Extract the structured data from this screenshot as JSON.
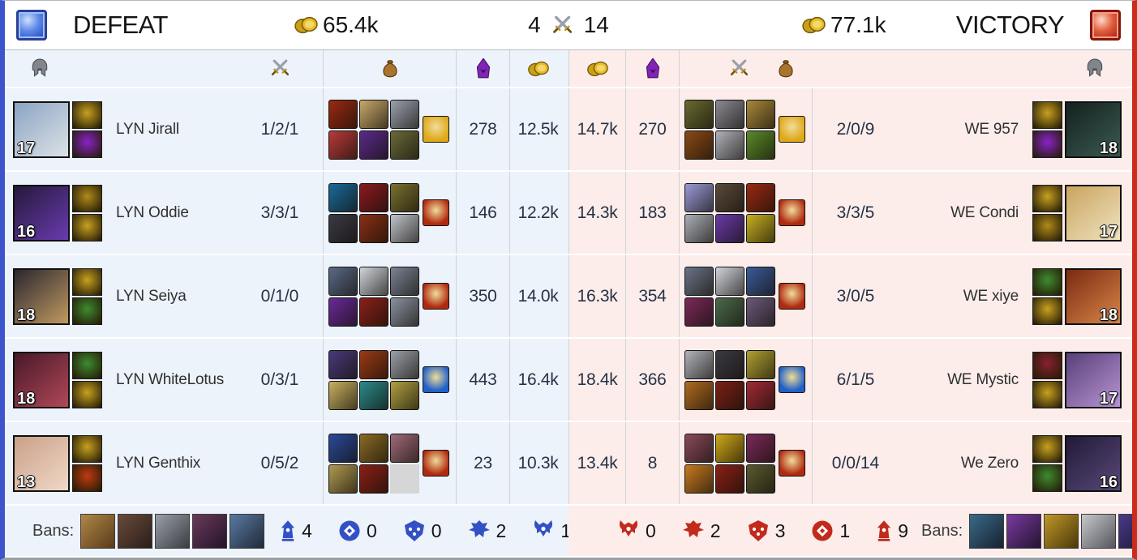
{
  "match": {
    "left": {
      "result": "DEFEAT",
      "team_gold": "65.4k",
      "kills": "4",
      "team_color": "#3c55cc",
      "row_bg": "#edf3fa"
    },
    "right": {
      "result": "VICTORY",
      "team_gold": "77.1k",
      "kills": "14",
      "team_color": "#cc2a1a",
      "row_bg": "#fcedeb"
    }
  },
  "columns": {
    "left": [
      "champion",
      "kda",
      "items",
      "minions",
      "gold"
    ],
    "right": [
      "gold",
      "minions",
      "items",
      "kda",
      "champion"
    ]
  },
  "players": {
    "left": [
      {
        "name": "LYN Jirall",
        "kda": "1/2/1",
        "cs": "278",
        "gold": "12.5k",
        "level": "17",
        "champion_colors": [
          "#8aa4c4",
          "#dde2e6"
        ],
        "spell_colors": [
          "#c8a020",
          "#8a22c8"
        ],
        "item_colors": [
          "#9a2a12",
          "#c8a86a",
          "#9aa2ae",
          "#b83a3a",
          "#5a2a8a",
          "#6a6a3a"
        ],
        "trinket_color": "#e0a818"
      },
      {
        "name": "LYN Oddie",
        "kda": "3/3/1",
        "cs": "146",
        "gold": "12.2k",
        "level": "16",
        "champion_colors": [
          "#241a3a",
          "#6a3ab0"
        ],
        "spell_colors": [
          "#b08a1a",
          "#c8a020"
        ],
        "item_colors": [
          "#1a6a9a",
          "#8a1a20",
          "#7a7030",
          "#3a3a46",
          "#8a3015",
          "#c0c4cc"
        ],
        "trinket_color": "#b02a10"
      },
      {
        "name": "LYN Seiya",
        "kda": "0/1/0",
        "cs": "350",
        "gold": "14.0k",
        "level": "18",
        "champion_colors": [
          "#2a2630",
          "#c09a60"
        ],
        "spell_colors": [
          "#c8a020",
          "#3f8a30"
        ],
        "item_colors": [
          "#5a6a88",
          "#d0d4dc",
          "#7a8494",
          "#6a2a9a",
          "#8a2018",
          "#8a92a0"
        ],
        "trinket_color": "#b02a10"
      },
      {
        "name": "LYN WhiteLotus",
        "kda": "0/3/1",
        "cs": "443",
        "gold": "16.4k",
        "level": "18",
        "champion_colors": [
          "#481828",
          "#b04858"
        ],
        "spell_colors": [
          "#3f8a30",
          "#c8a020"
        ],
        "item_colors": [
          "#4a3a7a",
          "#9a3a15",
          "#9aa0a8",
          "#c8b060",
          "#2a8a8a",
          "#b0a040"
        ],
        "trinket_color": "#2060c8"
      },
      {
        "name": "LYN Genthix",
        "kda": "0/5/2",
        "cs": "23",
        "gold": "10.3k",
        "level": "13",
        "champion_colors": [
          "#caa088",
          "#f0d8c8"
        ],
        "spell_colors": [
          "#c8a020",
          "#c03a10"
        ],
        "item_colors": [
          "#2a4a9a",
          "#8a6a25",
          "#a06a7a",
          "#b09a50",
          "#8a2015",
          "empty"
        ],
        "trinket_color": "#b02a10"
      }
    ],
    "right": [
      {
        "name": "WE 957",
        "kda": "2/0/9",
        "cs": "270",
        "gold": "14.7k",
        "level": "18",
        "champion_colors": [
          "#15211f",
          "#3a5a52"
        ],
        "spell_colors": [
          "#c8a020",
          "#8a22c8"
        ],
        "item_colors": [
          "#6a6a30",
          "#8a8a92",
          "#a8883a",
          "#8a4a15",
          "#b0b2ba",
          "#5a8a28"
        ],
        "trinket_color": "#e0a818"
      },
      {
        "name": "WE Condi",
        "kda": "3/3/5",
        "cs": "183",
        "gold": "14.3k",
        "level": "17",
        "champion_colors": [
          "#caa460",
          "#efe3c0"
        ],
        "spell_colors": [
          "#c8a020",
          "#b08a1a"
        ],
        "item_colors": [
          "#9a9ad8",
          "#5a4a3a",
          "#9a2a12",
          "#aab0b8",
          "#6a3aa8",
          "#c8b020"
        ],
        "trinket_color": "#b02a10"
      },
      {
        "name": "WE xiye",
        "kda": "3/0/5",
        "cs": "354",
        "gold": "16.3k",
        "level": "18",
        "champion_colors": [
          "#7a2a10",
          "#d8864a"
        ],
        "spell_colors": [
          "#3f8a30",
          "#c8a020"
        ],
        "item_colors": [
          "#6a7488",
          "#d0d4dc",
          "#3a5a9a",
          "#7a2a5a",
          "#4a6a4a",
          "#6a5a7a"
        ],
        "trinket_color": "#b02a10"
      },
      {
        "name": "WE Mystic",
        "kda": "6/1/5",
        "cs": "366",
        "gold": "18.4k",
        "level": "17",
        "champion_colors": [
          "#584078",
          "#b894d4"
        ],
        "spell_colors": [
          "#8a2030",
          "#c8a020"
        ],
        "item_colors": [
          "#b0b4bc",
          "#3a3a42",
          "#b0a030",
          "#b06a20",
          "#7a2015",
          "#a02a35"
        ],
        "trinket_color": "#2060c8"
      },
      {
        "name": "We Zero",
        "kda": "0/0/14",
        "cs": "8",
        "gold": "13.4k",
        "level": "16",
        "champion_colors": [
          "#221a38",
          "#584878"
        ],
        "spell_colors": [
          "#c8a020",
          "#3f8a30"
        ],
        "item_colors": [
          "#8a4a5a",
          "#d0a818",
          "#7a2a5a",
          "#c87a20",
          "#8a2015",
          "#5a5a30"
        ],
        "trinket_color": "#b02a10"
      }
    ]
  },
  "bans": {
    "label": "Bans:",
    "left_champions": [
      [
        "#b08848",
        "#5a3a1a"
      ],
      [
        "#6a4a3a",
        "#2a1e1a"
      ],
      [
        "#9aa0a8",
        "#3a3c42"
      ],
      [
        "#6a3a5a",
        "#241428"
      ],
      [
        "#5a7aa0",
        "#202a3a"
      ]
    ],
    "right_champions": [
      [
        "#3a6a8a",
        "#16222e"
      ],
      [
        "#7a3aa0",
        "#241430"
      ],
      [
        "#c0982a",
        "#4a3808"
      ],
      [
        "#c8c8cc",
        "#54565c"
      ],
      [
        "#4a3a8a",
        "#1a1430"
      ]
    ]
  },
  "objectives": {
    "left_color": "#3350c6",
    "right_color": "#c22a1c",
    "left": [
      {
        "type": "turret",
        "count": "4"
      },
      {
        "type": "inhibitor",
        "count": "0"
      },
      {
        "type": "grubs",
        "count": "0"
      },
      {
        "type": "dragon",
        "count": "2"
      },
      {
        "type": "baron",
        "count": "1"
      }
    ],
    "right": [
      {
        "type": "baron",
        "count": "0"
      },
      {
        "type": "dragon",
        "count": "2"
      },
      {
        "type": "grubs",
        "count": "3"
      },
      {
        "type": "inhibitor",
        "count": "1"
      },
      {
        "type": "turret",
        "count": "9"
      }
    ]
  }
}
